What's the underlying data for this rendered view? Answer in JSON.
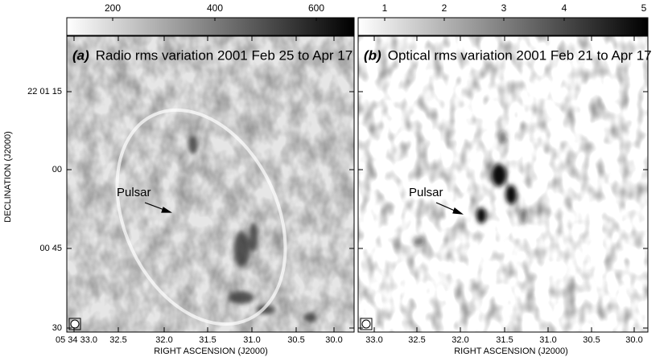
{
  "panels": [
    {
      "label": "(a)",
      "title": "Radio rms variation 2001 Feb 25 to Apr 17",
      "colorbar_ticks": [
        "200",
        "400",
        "600"
      ],
      "annotation": "Pulsar",
      "x_ticks": [
        "05 34 33.0",
        "32.5",
        "32.0",
        "31.5",
        "31.0",
        "30.5",
        "30.0"
      ]
    },
    {
      "label": "(b)",
      "title": "Optical rms variation 2001 Feb 21 to Apr 17",
      "colorbar_ticks": [
        "1",
        "2",
        "3",
        "4",
        "5"
      ],
      "annotation": "Pulsar",
      "x_ticks": [
        "33.0",
        "32.5",
        "32.0",
        "31.5",
        "31.0",
        "30.5",
        "30.0"
      ]
    }
  ],
  "y_ticks": [
    "22 01 15",
    "00",
    "00 45",
    "30"
  ],
  "y_label": "DECLINATION (J2000)",
  "x_label": "RIGHT ASCENSION (J2000)"
}
